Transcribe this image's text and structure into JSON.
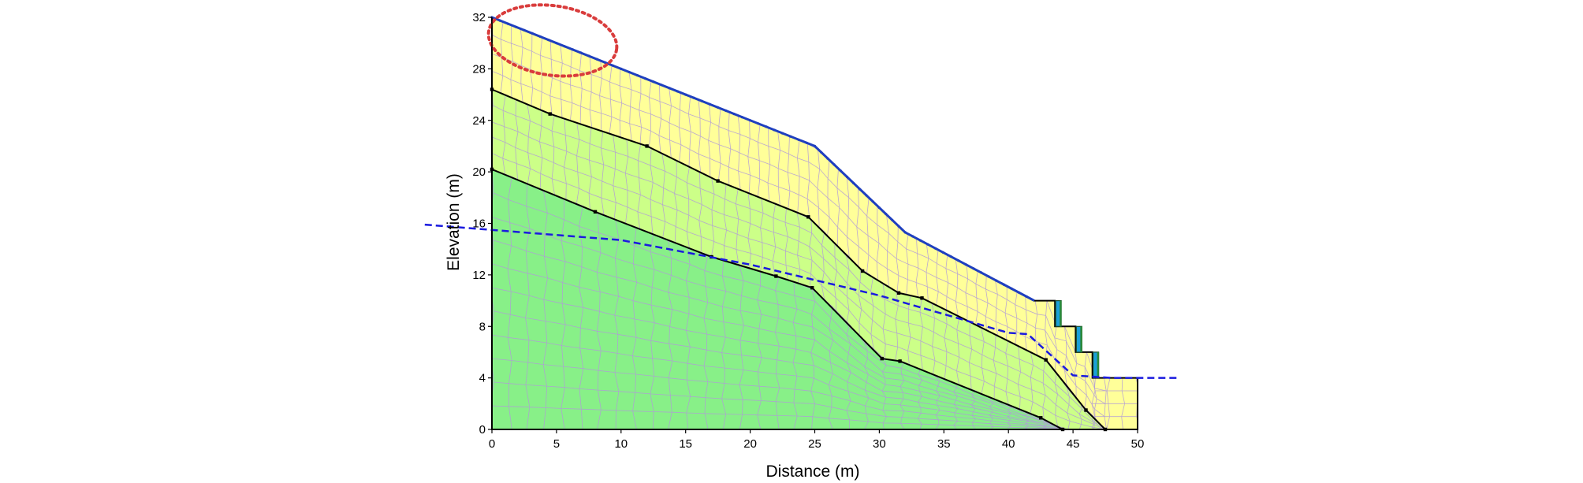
{
  "diagram": {
    "xlabel": "Distance (m)",
    "ylabel": "Elevation (m)",
    "x_ticks": [
      "0",
      "5",
      "10",
      "15",
      "20",
      "25",
      "30",
      "35",
      "40",
      "45",
      "50"
    ],
    "y_ticks": [
      "0",
      "4",
      "8",
      "12",
      "16",
      "20",
      "24",
      "28",
      "32"
    ],
    "x_range": [
      0,
      50
    ],
    "y_range": [
      0,
      32
    ],
    "colors": {
      "upper_layer": "#ffff99",
      "middle_layer": "#ccff88",
      "lower_layer": "#88f088",
      "mesh": "#b09ad8",
      "boundary": "#000000",
      "surface_nodes": "#1f3fbf",
      "water_table": "#1a1adf",
      "highlight_ellipse": "#d93c3c",
      "retaining_wall": "#1aa0d8"
    },
    "layers": {
      "upper": "ground surface to first boundary",
      "middle": "between boundaries",
      "lower": "below second boundary"
    },
    "ground_surface": [
      [
        0,
        32
      ],
      [
        10,
        28
      ],
      [
        25,
        22
      ],
      [
        32,
        15.3
      ],
      [
        42,
        10
      ],
      [
        43.6,
        10
      ],
      [
        43.6,
        8
      ],
      [
        45.2,
        8
      ],
      [
        45.2,
        6
      ],
      [
        46.5,
        6
      ],
      [
        46.5,
        4
      ],
      [
        50,
        4
      ]
    ],
    "boundary_1": [
      [
        0,
        26.4
      ],
      [
        4.5,
        24.5
      ],
      [
        12,
        22
      ],
      [
        17.5,
        19.3
      ],
      [
        24.5,
        16.5
      ],
      [
        28.7,
        12.3
      ],
      [
        31.5,
        10.6
      ],
      [
        33.3,
        10.2
      ],
      [
        42.9,
        5.4
      ],
      [
        46,
        1.5
      ],
      [
        47.5,
        0
      ]
    ],
    "boundary_2": [
      [
        0,
        20.2
      ],
      [
        8,
        16.9
      ],
      [
        17,
        13.4
      ],
      [
        22,
        11.9
      ],
      [
        24.8,
        11
      ],
      [
        30.2,
        5.5
      ],
      [
        31.6,
        5.3
      ],
      [
        42.5,
        0.9
      ],
      [
        44.2,
        0
      ]
    ],
    "water_table": [
      [
        -5.2,
        15.9
      ],
      [
        10,
        14.7
      ],
      [
        20,
        12.8
      ],
      [
        30,
        10.4
      ],
      [
        40,
        7.5
      ],
      [
        41.5,
        7.4
      ],
      [
        45,
        4.2
      ],
      [
        48,
        4
      ],
      [
        53.1,
        4
      ]
    ],
    "highlight_region": {
      "center": [
        4.7,
        30.2
      ],
      "radii": [
        5,
        2.7
      ]
    },
    "retaining_walls": [
      [
        43.9,
        10,
        8
      ],
      [
        45.5,
        8,
        6
      ],
      [
        46.8,
        6,
        4
      ]
    ]
  }
}
